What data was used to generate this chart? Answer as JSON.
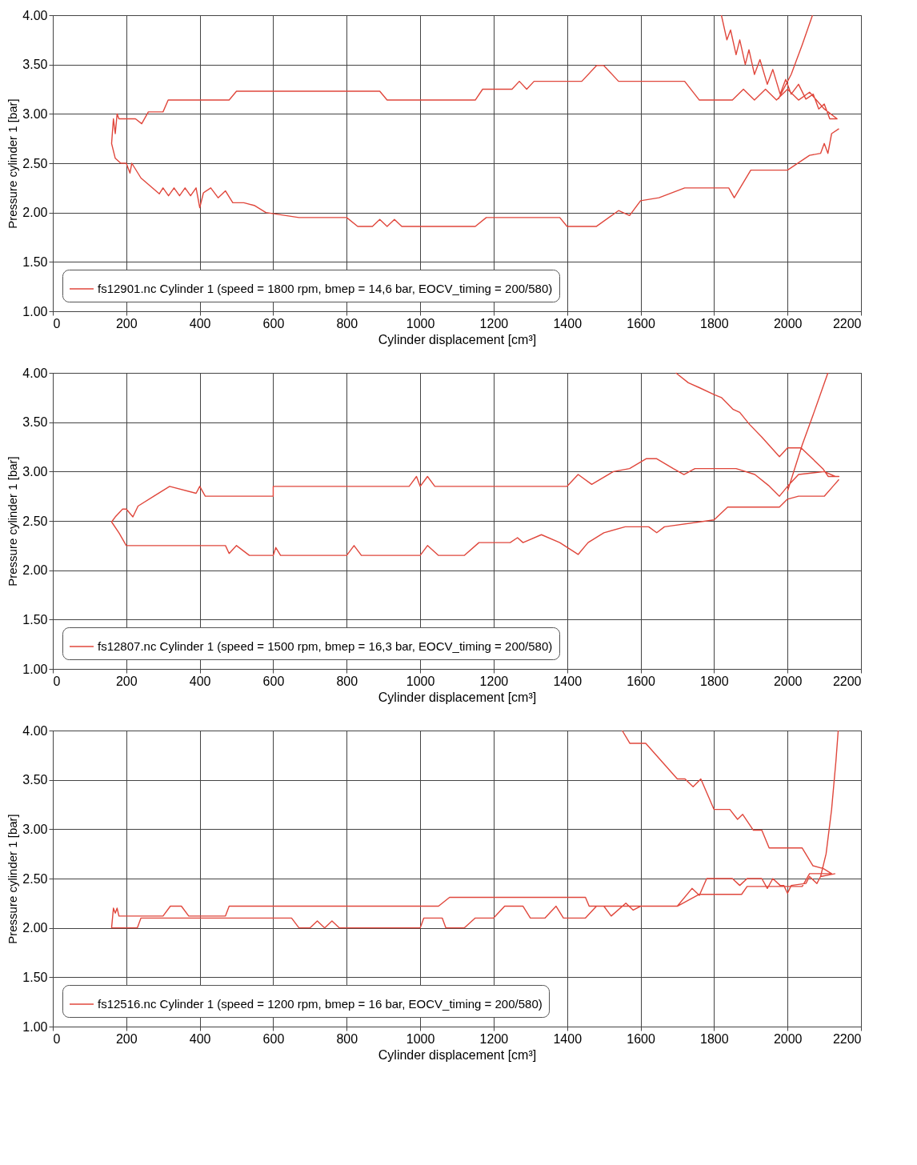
{
  "chart_data": [
    {
      "type": "line",
      "xlabel": "Cylinder displacement [cm³]",
      "ylabel": "Pressure cylinder 1 [bar]",
      "xlim": [
        0,
        2200
      ],
      "ylim": [
        1,
        4
      ],
      "xticks": [
        0,
        200,
        400,
        600,
        800,
        1000,
        1200,
        1400,
        1600,
        1800,
        2000,
        2200
      ],
      "yticks": [
        {
          "value": 1,
          "label": "1.00"
        },
        {
          "value": 1.5,
          "label": "1.50"
        },
        {
          "value": 2,
          "label": "2.00"
        },
        {
          "value": 2.5,
          "label": "2.50"
        },
        {
          "value": 3,
          "label": "3.00"
        },
        {
          "value": 3.5,
          "label": "3.50"
        },
        {
          "value": 4,
          "label": "4.00"
        }
      ],
      "grid": true,
      "legend": "bottom left",
      "series": [
        {
          "name": "fs12901.nc Cylinder 1 (speed = 1800 rpm, bmep = 14,6 bar, EOCV_timing = 200/580)",
          "color": "#e0473c",
          "x": [
            1975,
            2010,
            2040,
            2068,
            null,
            1820,
            1835,
            1845,
            1860,
            1870,
            1885,
            1895,
            1910,
            1925,
            1945,
            1960,
            1980,
            1995,
            2010,
            2030,
            2050,
            2070,
            2085,
            2100,
            2115,
            2135,
            2100,
            2060,
            2030,
            2000,
            1970,
            1940,
            1910,
            1880,
            1850,
            1760,
            1720,
            1630,
            1540,
            1500,
            1480,
            1440,
            1310,
            1290,
            1270,
            1250,
            1170,
            1150,
            910,
            890,
            500,
            480,
            314,
            300,
            260,
            242,
            225,
            180,
            175,
            170,
            165,
            160,
            170,
            185,
            200,
            210,
            215,
            240,
            290,
            300,
            315,
            330,
            345,
            360,
            375,
            390,
            400,
            410,
            430,
            450,
            470,
            490,
            520,
            550,
            580,
            670,
            800,
            830,
            870,
            890,
            910,
            930,
            950,
            1150,
            1180,
            1380,
            1400,
            1480,
            1540,
            1570,
            1600,
            1650,
            1720,
            1840,
            1855,
            1900,
            2000,
            2060,
            2090,
            2100,
            2110,
            2120,
            2140
          ],
          "values": [
            3.15,
            3.4,
            3.7,
            4.0,
            null,
            4.0,
            3.75,
            3.85,
            3.6,
            3.75,
            3.5,
            3.65,
            3.4,
            3.55,
            3.3,
            3.45,
            3.2,
            3.35,
            3.2,
            3.3,
            3.15,
            3.2,
            3.05,
            3.1,
            2.95,
            2.95,
            3.05,
            3.22,
            3.14,
            3.25,
            3.14,
            3.25,
            3.14,
            3.25,
            3.14,
            3.14,
            3.33,
            3.33,
            3.33,
            3.49,
            3.49,
            3.33,
            3.33,
            3.25,
            3.33,
            3.25,
            3.25,
            3.14,
            3.14,
            3.23,
            3.23,
            3.14,
            3.14,
            3.02,
            3.02,
            2.9,
            2.95,
            2.95,
            3.0,
            2.8,
            2.95,
            2.7,
            2.55,
            2.5,
            2.5,
            2.4,
            2.5,
            2.35,
            2.19,
            2.25,
            2.17,
            2.25,
            2.17,
            2.25,
            2.17,
            2.25,
            2.05,
            2.2,
            2.25,
            2.15,
            2.22,
            2.1,
            2.1,
            2.07,
            2.0,
            1.95,
            1.95,
            1.86,
            1.86,
            1.93,
            1.86,
            1.93,
            1.86,
            1.86,
            1.95,
            1.95,
            1.86,
            1.86,
            2.02,
            1.97,
            2.12,
            2.15,
            2.25,
            2.25,
            2.15,
            2.43,
            2.43,
            2.58,
            2.6,
            2.7,
            2.6,
            2.8,
            2.85
          ]
        }
      ]
    },
    {
      "type": "line",
      "xlabel": "Cylinder displacement [cm³]",
      "ylabel": "Pressure cylinder 1 [bar]",
      "xlim": [
        0,
        2200
      ],
      "ylim": [
        1,
        4
      ],
      "xticks": [
        0,
        200,
        400,
        600,
        800,
        1000,
        1200,
        1400,
        1600,
        1800,
        2000,
        2200
      ],
      "yticks": [
        {
          "value": 1,
          "label": "1.00"
        },
        {
          "value": 1.5,
          "label": "1.50"
        },
        {
          "value": 2,
          "label": "2.00"
        },
        {
          "value": 2.5,
          "label": "2.50"
        },
        {
          "value": 3,
          "label": "3.00"
        },
        {
          "value": 3.5,
          "label": "3.50"
        },
        {
          "value": 4,
          "label": "4.00"
        }
      ],
      "grid": true,
      "legend": "bottom left",
      "series": [
        {
          "name": "fs12807.nc Cylinder 1 (speed = 1500 rpm, bmep = 16,3 bar, EOCV_timing = 200/580)",
          "color": "#e0473c",
          "x": [
            2000,
            2040,
            2075,
            2110,
            null,
            1696,
            1730,
            1760,
            1800,
            1820,
            1852,
            1870,
            1896,
            1930,
            1978,
            2000,
            2037,
            2096,
            2111,
            2140,
            2130,
            2100,
            2030,
            2000,
            1978,
            1948,
            1911,
            1860,
            1800,
            1748,
            1718,
            1689,
            1644,
            1615,
            1570,
            1526,
            1467,
            1430,
            1400,
            1040,
            1020,
            1000,
            990,
            970,
            600,
            600,
            415,
            400,
            390,
            318,
            275,
            232,
            218,
            200,
            190,
            170,
            160,
            180,
            200,
            470,
            480,
            500,
            535,
            600,
            607,
            620,
            800,
            820,
            840,
            1000,
            1020,
            1050,
            1120,
            1160,
            1245,
            1265,
            1280,
            1330,
            1380,
            1430,
            1457,
            1500,
            1558,
            1622,
            1644,
            1665,
            1800,
            1837,
            1978,
            2000,
            2030,
            2100,
            2126,
            2140
          ],
          "values": [
            2.8,
            3.27,
            3.63,
            4.0,
            null,
            4.0,
            3.9,
            3.85,
            3.78,
            3.75,
            3.63,
            3.6,
            3.48,
            3.35,
            3.15,
            3.24,
            3.24,
            3.03,
            2.95,
            2.95,
            2.95,
            3.0,
            2.97,
            2.85,
            2.75,
            2.86,
            2.97,
            3.03,
            3.03,
            3.03,
            2.97,
            3.03,
            3.13,
            3.13,
            3.03,
            3.0,
            2.87,
            2.97,
            2.85,
            2.85,
            2.95,
            2.85,
            2.95,
            2.85,
            2.85,
            2.75,
            2.75,
            2.85,
            2.78,
            2.85,
            2.75,
            2.65,
            2.54,
            2.62,
            2.62,
            2.54,
            2.49,
            2.38,
            2.25,
            2.25,
            2.17,
            2.25,
            2.15,
            2.15,
            2.23,
            2.15,
            2.15,
            2.25,
            2.15,
            2.15,
            2.25,
            2.15,
            2.15,
            2.28,
            2.28,
            2.33,
            2.28,
            2.36,
            2.28,
            2.16,
            2.28,
            2.38,
            2.44,
            2.44,
            2.38,
            2.44,
            2.51,
            2.64,
            2.64,
            2.72,
            2.75,
            2.75,
            2.86,
            2.92
          ]
        }
      ]
    },
    {
      "type": "line",
      "xlabel": "Cylinder displacement [cm³]",
      "ylabel": "Pressure cylinder 1 [bar]",
      "xlim": [
        0,
        2200
      ],
      "ylim": [
        1,
        4
      ],
      "xticks": [
        0,
        200,
        400,
        600,
        800,
        1000,
        1200,
        1400,
        1600,
        1800,
        2000,
        2200
      ],
      "yticks": [
        {
          "value": 1,
          "label": "1.00"
        },
        {
          "value": 1.5,
          "label": "1.50"
        },
        {
          "value": 2,
          "label": "2.00"
        },
        {
          "value": 2.5,
          "label": "2.50"
        },
        {
          "value": 3,
          "label": "3.00"
        },
        {
          "value": 3.5,
          "label": "3.50"
        },
        {
          "value": 4,
          "label": "4.00"
        }
      ],
      "grid": true,
      "legend": "bottom left",
      "series": [
        {
          "name": "fs12516.nc Cylinder 1 (speed = 1200 rpm, bmep = 16 bar, EOCV_timing = 200/580)",
          "color": "#e0473c",
          "x": [
            2090,
            2105,
            2120,
            2132,
            2138,
            null,
            1550,
            1571,
            1614,
            1700,
            1721,
            1743,
            1764,
            1800,
            1843,
            1864,
            1878,
            1907,
            1930,
            1950,
            2040,
            2069,
            2098,
            2120,
            2060,
            2040,
            1890,
            1875,
            1760,
            1700,
            1460,
            1450,
            1080,
            1050,
            480,
            470,
            370,
            350,
            320,
            300,
            230,
            180,
            175,
            170,
            165,
            160,
            230,
            240,
            650,
            670,
            700,
            720,
            740,
            760,
            780,
            1000,
            1010,
            1060,
            1070,
            1120,
            1150,
            1200,
            1230,
            1280,
            1300,
            1340,
            1370,
            1390,
            1450,
            1480,
            1500,
            1520,
            1560,
            1580,
            1600,
            1700,
            1740,
            1760,
            1780,
            1850,
            1870,
            1890,
            1930,
            1945,
            1960,
            1980,
            1990,
            2000,
            2010,
            2050,
            2060,
            2080,
            2090,
            2130
          ],
          "values": [
            2.52,
            2.75,
            3.2,
            3.7,
            4.0,
            null,
            4.0,
            3.87,
            3.87,
            3.51,
            3.51,
            3.43,
            3.51,
            3.2,
            3.2,
            3.1,
            3.15,
            2.99,
            2.99,
            2.81,
            2.81,
            2.63,
            2.6,
            2.55,
            2.55,
            2.42,
            2.42,
            2.34,
            2.34,
            2.22,
            2.22,
            2.31,
            2.31,
            2.22,
            2.22,
            2.12,
            2.12,
            2.22,
            2.22,
            2.12,
            2.12,
            2.12,
            2.2,
            2.15,
            2.2,
            2.0,
            2.0,
            2.1,
            2.1,
            2.0,
            2.0,
            2.07,
            2.0,
            2.07,
            2.0,
            2.0,
            2.1,
            2.1,
            2.0,
            2.0,
            2.1,
            2.1,
            2.22,
            2.22,
            2.1,
            2.1,
            2.22,
            2.1,
            2.1,
            2.22,
            2.22,
            2.12,
            2.25,
            2.18,
            2.22,
            2.22,
            2.4,
            2.33,
            2.5,
            2.5,
            2.43,
            2.5,
            2.5,
            2.4,
            2.5,
            2.43,
            2.43,
            2.35,
            2.43,
            2.45,
            2.52,
            2.45,
            2.52,
            2.55
          ]
        }
      ]
    }
  ]
}
